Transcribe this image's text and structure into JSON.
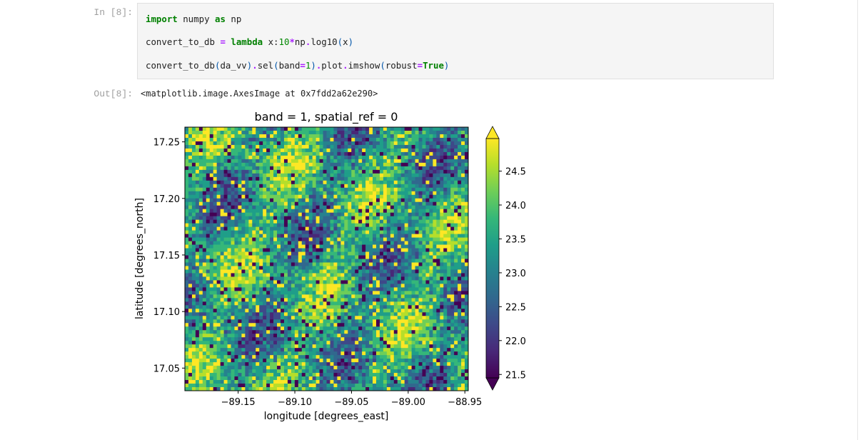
{
  "notebook": {
    "input_prompt": "In [8]:",
    "output_prompt": "Out[8]:",
    "code": {
      "line1": {
        "kw1": "import",
        "mod": " numpy ",
        "kw2": "as",
        "alias": " np"
      },
      "line2": {
        "var": "convert_to_db ",
        "eq": "=",
        "sp": " ",
        "kw": "lambda",
        "arg": " x:",
        "num": "10",
        "mul": "*",
        "call": "np",
        "dot": ".",
        "fn": "log10",
        "open": "(",
        "x": "x",
        "close": ")"
      },
      "line3": {
        "fn": "convert_to_db",
        "p1": "(",
        "arg": "da_vv",
        "p2": ")",
        "d1": ".",
        "sel": "sel",
        "p3": "(",
        "band": "band",
        "eq1": "=",
        "one": "1",
        "p4": ")",
        "d2": ".",
        "plot": "plot",
        "d3": ".",
        "imshow": "imshow",
        "p5": "(",
        "robust": "robust",
        "eq2": "=",
        "true": "True",
        "p6": ")"
      }
    },
    "output_text": "<matplotlib.image.AxesImage at 0x7fdd2a62e290>"
  },
  "chart_data": {
    "type": "heatmap",
    "title": "band = 1, spatial_ref = 0",
    "xlabel": "longitude [degrees_east]",
    "ylabel": "latitude [degrees_north]",
    "xlim": [
      -89.197,
      -88.947
    ],
    "ylim": [
      17.03,
      17.263
    ],
    "x_ticks": [
      -89.15,
      -89.1,
      -89.05,
      -89.0,
      -88.95
    ],
    "x_tick_labels": [
      "−89.15",
      "−89.10",
      "−89.05",
      "−89.00",
      "−88.95"
    ],
    "y_ticks": [
      17.05,
      17.1,
      17.15,
      17.2,
      17.25
    ],
    "y_tick_labels": [
      "17.05",
      "17.10",
      "17.15",
      "17.20",
      "17.25"
    ],
    "colormap": "viridis",
    "colorbar": {
      "range": [
        21.45,
        24.98
      ],
      "ticks": [
        21.5,
        22.0,
        22.5,
        23.0,
        23.5,
        24.0,
        24.5
      ],
      "tick_labels": [
        "21.5",
        "22.0",
        "22.5",
        "23.0",
        "23.5",
        "24.0",
        "24.5"
      ],
      "extend": "both"
    },
    "colors": [
      "#440154",
      "#482878",
      "#3e4989",
      "#31688e",
      "#26828e",
      "#1f9e89",
      "#35b779",
      "#6ece58",
      "#b5de2b",
      "#fde725"
    ]
  }
}
